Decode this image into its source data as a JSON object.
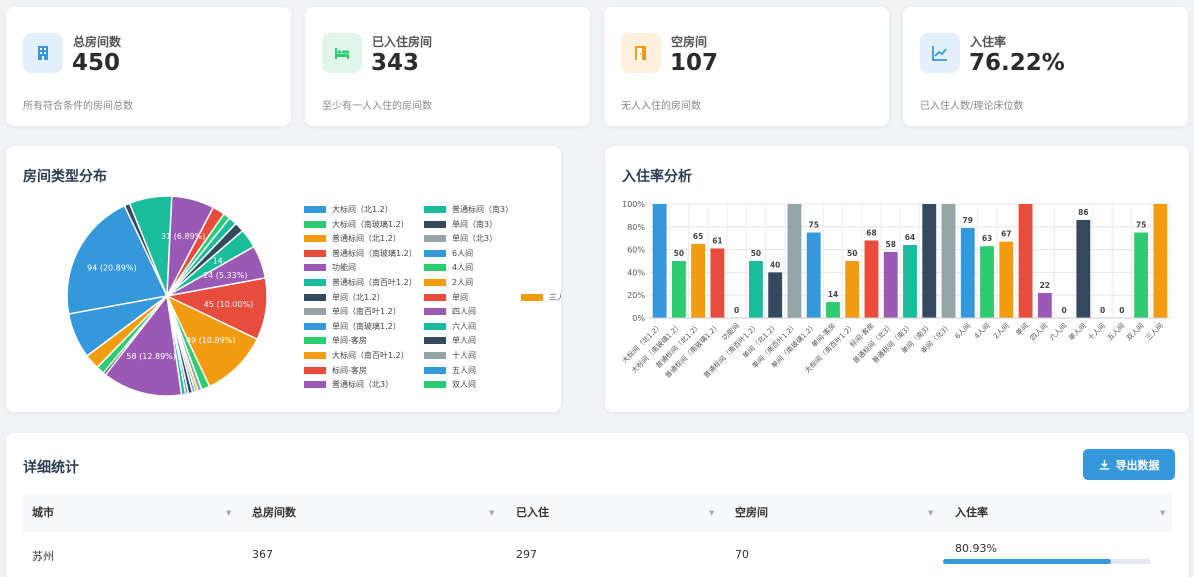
{
  "stats": [
    {
      "label": "总房间数",
      "value": "450",
      "desc": "所有符合条件的房间总数",
      "color": "#3498db",
      "bg": "#e3f0fb",
      "icon": "building-icon"
    },
    {
      "label": "已入住房间",
      "value": "343",
      "desc": "至少有一人入住的房间数",
      "color": "#2ecc71",
      "bg": "#e1f6ea",
      "icon": "bed-icon"
    },
    {
      "label": "空房间",
      "value": "107",
      "desc": "无人入住的房间数",
      "color": "#f39c12",
      "bg": "#fdf0dc",
      "icon": "door-icon"
    },
    {
      "label": "入住率",
      "value": "76.22%",
      "desc": "已入住人数/理论床位数",
      "color": "#3498db",
      "bg": "#e3f0fb",
      "icon": "chart-line-icon"
    }
  ],
  "pie_panel": {
    "title": "房间类型分布"
  },
  "bar_panel": {
    "title": "入住率分析"
  },
  "legend": {
    "col1": [
      {
        "name": "大标间（北1.2）",
        "color": "#3498db"
      },
      {
        "name": "大标间（南玻璃1.2）",
        "color": "#2ecc71"
      },
      {
        "name": "普通标间（北1.2）",
        "color": "#f39c12"
      },
      {
        "name": "普通标间（南玻璃1.2）",
        "color": "#e74c3c"
      },
      {
        "name": "功能间",
        "color": "#9b59b6"
      },
      {
        "name": "普通标间（南百叶1.2）",
        "color": "#1abc9c"
      },
      {
        "name": "单间（北1.2）",
        "color": "#34495e"
      },
      {
        "name": "单间（南百叶1.2）",
        "color": "#95a5a6"
      },
      {
        "name": "单间（南玻璃1.2）",
        "color": "#3498db"
      },
      {
        "name": "单间-客房",
        "color": "#2ecc71"
      },
      {
        "name": "大标间（南百叶1.2）",
        "color": "#f39c12"
      },
      {
        "name": "标间-客房",
        "color": "#e74c3c"
      },
      {
        "name": "普通标间（北3）",
        "color": "#9b59b6"
      }
    ],
    "col2": [
      {
        "name": "普通标间（南3）",
        "color": "#1abc9c"
      },
      {
        "name": "单间（南3）",
        "color": "#34495e"
      },
      {
        "name": "单间（北3）",
        "color": "#95a5a6"
      },
      {
        "name": "6人间",
        "color": "#3498db"
      },
      {
        "name": "4人间",
        "color": "#2ecc71"
      },
      {
        "name": "2人间",
        "color": "#f39c12"
      },
      {
        "name": "单间",
        "color": "#e74c3c"
      },
      {
        "name": "四人间",
        "color": "#9b59b6"
      },
      {
        "name": "六人间",
        "color": "#1abc9c"
      },
      {
        "name": "单人间",
        "color": "#34495e"
      },
      {
        "name": "十人间",
        "color": "#95a5a6"
      },
      {
        "name": "五人间",
        "color": "#3498db"
      },
      {
        "name": "双人间",
        "color": "#2ecc71"
      }
    ],
    "col3": [
      {
        "name": "三人间",
        "color": "#f39c12"
      }
    ]
  },
  "chart_data": [
    {
      "type": "pie",
      "title": "房间类型分布",
      "slices": [
        {
          "value": 94,
          "label": "94 (20.89%)",
          "color": "#3498db"
        },
        {
          "value": 4,
          "label": "",
          "color": "#34495e"
        },
        {
          "value": 31,
          "label": "",
          "color": "#1abc9c"
        },
        {
          "value": 31,
          "label": "31 (6.89%)",
          "color": "#9b59b6"
        },
        {
          "value": 9,
          "label": "",
          "color": "#e74c3c"
        },
        {
          "value": 5,
          "label": "",
          "color": "#2ecc71"
        },
        {
          "value": 6,
          "label": "",
          "color": "#1abc9c"
        },
        {
          "value": 7,
          "label": "",
          "color": "#34495e"
        },
        {
          "value": 14,
          "label": "14",
          "color": "#1abc9c"
        },
        {
          "value": 24,
          "label": "24 (5.33%)",
          "color": "#9b59b6"
        },
        {
          "value": 45,
          "label": "45 (10.00%)",
          "color": "#e74c3c"
        },
        {
          "value": 49,
          "label": "49 (10.89%)",
          "color": "#f39c12"
        },
        {
          "value": 6,
          "label": "",
          "color": "#2ecc71"
        },
        {
          "value": 3,
          "label": "",
          "color": "#95a5a6"
        },
        {
          "value": 2,
          "label": "",
          "color": "#f39c12"
        },
        {
          "value": 2,
          "label": "",
          "color": "#3498db"
        },
        {
          "value": 3,
          "label": "",
          "color": "#34495e"
        },
        {
          "value": 2,
          "label": "",
          "color": "#3498db"
        },
        {
          "value": 3,
          "label": "",
          "color": "#1abc9c"
        },
        {
          "value": 58,
          "label": "58 (12.89%)",
          "color": "#9b59b6"
        },
        {
          "value": 2,
          "label": "",
          "color": "#34495e"
        },
        {
          "value": 6,
          "label": "",
          "color": "#2ecc71"
        },
        {
          "value": 11,
          "label": "",
          "color": "#f39c12"
        },
        {
          "value": 33,
          "label": "",
          "color": "#3498db"
        }
      ]
    },
    {
      "type": "bar",
      "title": "入住率分析",
      "yticks": [
        "0%",
        "20%",
        "40%",
        "60%",
        "80%",
        "100%"
      ],
      "ylim": [
        0,
        100
      ],
      "categories": [
        "大标间（北1.2）",
        "大标间（南玻璃1.2）",
        "普通标间（北1.2）",
        "普通标间（南玻璃1.2）",
        "功能间",
        "普通标间（南百叶1.2）",
        "单间（北1.2）",
        "单间（南百叶1.2）",
        "单间（南玻璃1.2）",
        "单间-客房",
        "大标间（南百叶1.2）",
        "标间-客房",
        "普通标间（北3）",
        "普通标间（南3）",
        "单间（南3）",
        "单间（北3）",
        "6人间",
        "4人间",
        "2人间",
        "单间",
        "四人间",
        "六人间",
        "单人间",
        "十人间",
        "五人间",
        "双人间",
        "三人间"
      ],
      "values": [
        100,
        50,
        65,
        61,
        0,
        50,
        40,
        100,
        75,
        14,
        50,
        68,
        58,
        64,
        100,
        100,
        79,
        63,
        67,
        100,
        22,
        0,
        86,
        0,
        0,
        75,
        100
      ],
      "labels": [
        "",
        "50",
        "65",
        "61",
        "0",
        "50",
        "40",
        "",
        "75",
        "14",
        "50",
        "68",
        "58",
        "64",
        "",
        "",
        "79",
        "63",
        "67",
        "",
        "22",
        "0",
        "86",
        "0",
        "0",
        "75",
        ""
      ],
      "colors": [
        "#3498db",
        "#2ecc71",
        "#f39c12",
        "#e74c3c",
        "#9b59b6",
        "#1abc9c",
        "#34495e",
        "#95a5a6",
        "#3498db",
        "#2ecc71",
        "#f39c12",
        "#e74c3c",
        "#9b59b6",
        "#1abc9c",
        "#34495e",
        "#95a5a6",
        "#3498db",
        "#2ecc71",
        "#f39c12",
        "#e74c3c",
        "#9b59b6",
        "#1abc9c",
        "#34495e",
        "#95a5a6",
        "#3498db",
        "#2ecc71",
        "#f39c12"
      ]
    }
  ],
  "detail": {
    "title": "详细统计",
    "export_label": "导出数据",
    "columns": [
      "城市",
      "总房间数",
      "已入住",
      "空房间",
      "入住率"
    ],
    "row": {
      "city": "苏州",
      "total": "367",
      "occupied": "297",
      "empty": "70",
      "rate": "80.93%",
      "rate_value": 80.93
    }
  }
}
